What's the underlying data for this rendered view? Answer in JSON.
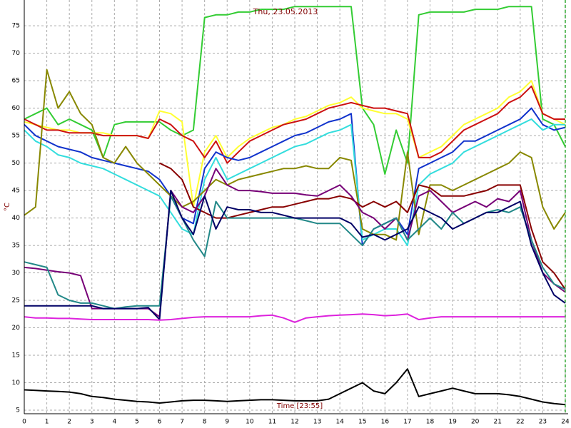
{
  "chart_data": {
    "type": "line",
    "title": "Thu, 23.05.2013",
    "y_label": "°C",
    "x_label": "Time [23:55]",
    "x": [
      0,
      0.5,
      1,
      1.5,
      2,
      2.5,
      3,
      3.5,
      4,
      4.5,
      5,
      5.5,
      6,
      6.5,
      7,
      7.5,
      8,
      8.5,
      9,
      9.5,
      10,
      10.5,
      11,
      11.5,
      12,
      12.5,
      13,
      13.5,
      14,
      14.5,
      15,
      15.5,
      16,
      16.5,
      17,
      17.5,
      18,
      18.5,
      19,
      19.5,
      20,
      20.5,
      21,
      21.5,
      22,
      22.5,
      23,
      23.5,
      24
    ],
    "xlim": [
      0,
      24
    ],
    "xticks": [
      0,
      1,
      2,
      3,
      4,
      5,
      6,
      7,
      8,
      9,
      10,
      11,
      12,
      13,
      14,
      15,
      16,
      17,
      18,
      19,
      20,
      21,
      22,
      23,
      24
    ],
    "ylim": [
      4.35,
      79.7
    ],
    "yticks": [
      5,
      10,
      15,
      20,
      25,
      30,
      35,
      40,
      45,
      50,
      55,
      60,
      65,
      70,
      75
    ],
    "grid": true,
    "series": [
      {
        "color": "#33cc33",
        "values": [
          58,
          59,
          60,
          57,
          58,
          57,
          56,
          51,
          57,
          57.5,
          57.5,
          57.5,
          57.5,
          56,
          55,
          56,
          76.5,
          77,
          77,
          77.5,
          77.5,
          78,
          78,
          78,
          78.5,
          78.5,
          78.5,
          78.5,
          78.5,
          78.5,
          60,
          57,
          48,
          56,
          50,
          77,
          77.5,
          77.5,
          77.5,
          77.5,
          78,
          78,
          78,
          78.5,
          78.5,
          78.5,
          58,
          57,
          53
        ]
      },
      {
        "color": "#ffff33",
        "values": [
          57.5,
          57,
          56.5,
          56,
          56,
          55.5,
          55.5,
          55.5,
          55,
          55,
          55,
          54.5,
          59.5,
          59,
          57.5,
          42,
          52,
          55,
          51,
          53,
          54.5,
          55.5,
          56.5,
          57,
          58,
          58.5,
          59.5,
          60.5,
          61,
          62,
          60,
          59.5,
          59,
          59,
          58,
          51,
          52,
          53,
          55,
          57,
          58,
          59,
          60,
          62,
          63,
          65,
          59,
          58,
          57
        ]
      },
      {
        "color": "#cc1111",
        "values": [
          58,
          57,
          56,
          56,
          55.5,
          55.5,
          55.5,
          55,
          55,
          55,
          55,
          54.5,
          58,
          57,
          55,
          54,
          51,
          54,
          50,
          52,
          54,
          55,
          56,
          57,
          57.5,
          58,
          59,
          60,
          60.5,
          61,
          60.5,
          60,
          60,
          59.5,
          59,
          51,
          51,
          52,
          54,
          56,
          57,
          58,
          59,
          61,
          62,
          64,
          59,
          58,
          58
        ]
      },
      {
        "color": "#1133cc",
        "values": [
          57,
          55,
          54,
          53,
          52.5,
          52,
          51,
          50.5,
          50,
          49.5,
          49,
          48.5,
          47,
          44,
          40,
          39,
          49,
          52,
          51,
          50.5,
          51,
          52,
          53,
          54,
          55,
          55.5,
          56.5,
          57.5,
          58,
          59,
          35,
          38,
          39,
          40,
          37,
          49,
          50,
          51,
          52,
          54,
          54,
          55,
          56,
          57,
          58,
          60,
          57,
          56,
          56.5
        ]
      },
      {
        "color": "#33dddd",
        "values": [
          56,
          54,
          53,
          51.5,
          51,
          50,
          49.5,
          49,
          48,
          47,
          46,
          45,
          44,
          41,
          38,
          37,
          47,
          51,
          47,
          48,
          49,
          50,
          51,
          52,
          53,
          53.5,
          54.5,
          55.5,
          56,
          57,
          36,
          37,
          38,
          38,
          35,
          46,
          48,
          49,
          50,
          52,
          53,
          54,
          55,
          56,
          57,
          58,
          56,
          57,
          57
        ]
      },
      {
        "color": "#888800",
        "values": [
          40.5,
          42,
          67,
          60,
          63,
          59,
          57,
          51,
          50,
          53,
          50,
          48,
          46,
          44,
          42,
          43,
          45,
          47,
          46,
          47,
          47.5,
          48,
          48.5,
          49,
          49,
          49.5,
          49,
          49,
          51,
          50.5,
          38,
          37,
          37,
          36,
          52,
          37,
          46,
          46,
          45,
          46,
          47,
          48,
          49,
          50,
          52,
          51,
          42,
          38,
          41
        ]
      },
      {
        "color": "#880000",
        "values": [
          null,
          null,
          null,
          null,
          null,
          null,
          null,
          null,
          null,
          null,
          null,
          null,
          50,
          49,
          47,
          42,
          41,
          40,
          40,
          40.5,
          41,
          41.5,
          42,
          42,
          42.5,
          43,
          43.5,
          43.5,
          44,
          43.5,
          42,
          43,
          42,
          43,
          41,
          46,
          45.5,
          44,
          44,
          44,
          44.5,
          45,
          46,
          46,
          46,
          38,
          32,
          30,
          27
        ]
      },
      {
        "color": "#770077",
        "values": [
          31,
          30.8,
          30.5,
          30.2,
          30,
          29.5,
          23.5,
          23.5,
          23.5,
          23.5,
          23.5,
          23.5,
          22,
          45,
          42,
          41,
          44,
          49,
          46,
          45,
          45,
          44.8,
          44.5,
          44.5,
          44.5,
          44.2,
          44,
          45,
          46,
          44,
          41,
          40,
          38,
          40,
          36,
          44,
          45,
          43,
          41,
          42,
          43,
          42,
          43.5,
          43,
          45,
          36,
          30,
          28,
          26.5
        ]
      },
      {
        "color": "#228888",
        "values": [
          32,
          31.5,
          31,
          26,
          25,
          24.5,
          24.5,
          24,
          23.5,
          23.8,
          24,
          24,
          24,
          44,
          40,
          36,
          33,
          43,
          40,
          40,
          40,
          40,
          40,
          40,
          40,
          39.5,
          39,
          39,
          39,
          37,
          35,
          38,
          39,
          40,
          36,
          38,
          40,
          38,
          41,
          39,
          40,
          41,
          41.5,
          41,
          42,
          36,
          31,
          28,
          27
        ]
      },
      {
        "color": "#000066",
        "values": [
          24,
          24,
          24,
          24,
          24,
          24,
          24,
          23.5,
          23.5,
          23.5,
          23.5,
          23.7,
          21.5,
          45,
          40,
          37,
          44,
          38,
          42,
          41.5,
          41.5,
          41,
          41,
          40.5,
          40,
          40,
          40,
          40,
          40,
          39,
          36.5,
          37,
          36,
          37,
          38,
          42,
          41,
          40,
          38,
          39,
          40,
          41,
          41,
          42,
          43,
          35,
          30,
          26,
          24.5
        ]
      },
      {
        "color": "#dd22dd",
        "values": [
          22,
          21.8,
          21.8,
          21.7,
          21.7,
          21.6,
          21.5,
          21.5,
          21.5,
          21.5,
          21.5,
          21.5,
          21.4,
          21.5,
          21.7,
          21.9,
          22,
          22,
          22,
          22,
          22,
          22.2,
          22.3,
          21.8,
          21,
          21.8,
          22,
          22.2,
          22.3,
          22.4,
          22.5,
          22.4,
          22.2,
          22.3,
          22.5,
          21.5,
          21.8,
          22,
          22,
          22,
          22,
          22,
          22,
          22,
          22,
          22,
          22,
          22,
          22
        ]
      },
      {
        "color": "#000000",
        "values": [
          8.7,
          8.6,
          8.5,
          8.4,
          8.3,
          8,
          7.5,
          7.3,
          7,
          6.8,
          6.6,
          6.5,
          6.3,
          6.5,
          6.7,
          6.8,
          6.8,
          6.7,
          6.6,
          6.7,
          6.8,
          6.9,
          6.9,
          6.8,
          6.7,
          6.7,
          6.7,
          7,
          8,
          9,
          10,
          8.5,
          8,
          10,
          12.5,
          7.5,
          8,
          8.5,
          9,
          8.5,
          8,
          8,
          8,
          7.8,
          7.5,
          7,
          6.5,
          6.2,
          6
        ]
      }
    ]
  }
}
